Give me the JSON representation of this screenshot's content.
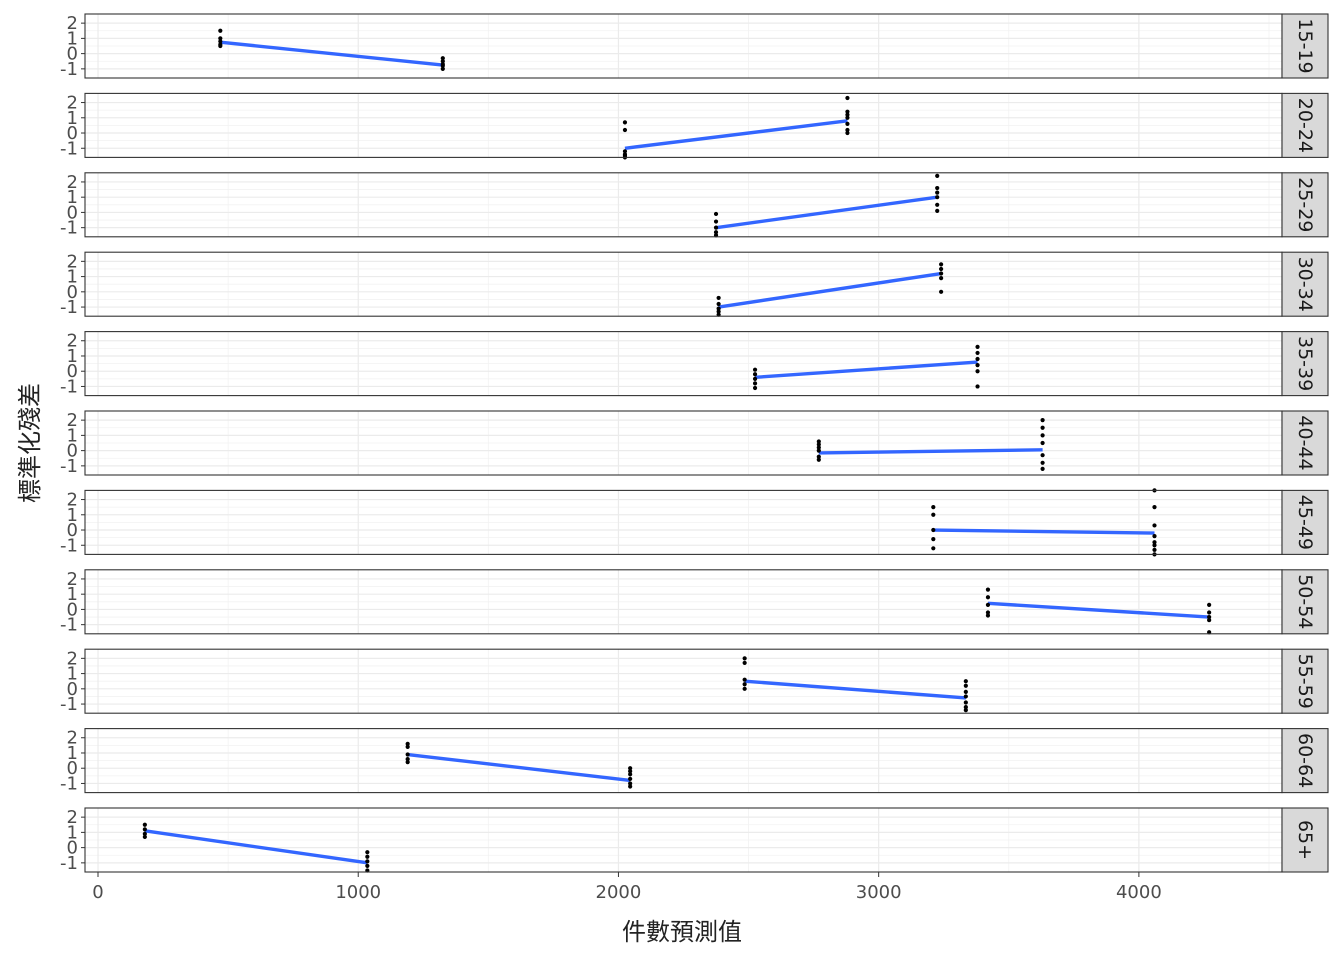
{
  "chart_data": {
    "type": "scatter",
    "xlabel": "件數預測值",
    "ylabel": "標準化殘差",
    "x_range": [
      -50,
      4550
    ],
    "x_ticks": [
      0,
      1000,
      2000,
      3000,
      4000
    ],
    "y_range": [
      -1.6,
      2.6
    ],
    "y_ticks": [
      -1,
      0,
      1,
      2
    ],
    "grid": true,
    "line_color": "#3366FF",
    "point_color": "#000000",
    "facets": [
      {
        "label": "15-19",
        "points": [
          [
            470,
            1.5
          ],
          [
            470,
            1.0
          ],
          [
            470,
            0.8
          ],
          [
            470,
            0.6
          ],
          [
            470,
            0.5
          ],
          [
            1325,
            -0.3
          ],
          [
            1325,
            -0.5
          ],
          [
            1325,
            -0.7
          ],
          [
            1325,
            -0.8
          ],
          [
            1325,
            -1.0
          ]
        ],
        "line": [
          [
            470,
            0.75
          ],
          [
            1325,
            -0.75
          ]
        ]
      },
      {
        "label": "20-24",
        "points": [
          [
            2025,
            0.7
          ],
          [
            2025,
            0.2
          ],
          [
            2025,
            -1.2
          ],
          [
            2025,
            -1.4
          ],
          [
            2025,
            -1.5
          ],
          [
            2025,
            -1.6
          ],
          [
            2880,
            2.3
          ],
          [
            2880,
            1.4
          ],
          [
            2880,
            1.2
          ],
          [
            2880,
            1.0
          ],
          [
            2880,
            0.6
          ],
          [
            2880,
            0.2
          ],
          [
            2880,
            0.0
          ]
        ],
        "line": [
          [
            2025,
            -1.0
          ],
          [
            2880,
            0.8
          ]
        ]
      },
      {
        "label": "25-29",
        "points": [
          [
            2375,
            -0.1
          ],
          [
            2375,
            -0.6
          ],
          [
            2375,
            -1.0
          ],
          [
            2375,
            -1.3
          ],
          [
            2375,
            -1.5
          ],
          [
            3225,
            2.4
          ],
          [
            3225,
            1.6
          ],
          [
            3225,
            1.3
          ],
          [
            3225,
            1.0
          ],
          [
            3225,
            0.5
          ],
          [
            3225,
            0.1
          ]
        ],
        "line": [
          [
            2375,
            -1.0
          ],
          [
            3225,
            1.0
          ]
        ]
      },
      {
        "label": "30-34",
        "points": [
          [
            2385,
            -0.4
          ],
          [
            2385,
            -0.8
          ],
          [
            2385,
            -1.1
          ],
          [
            2385,
            -1.3
          ],
          [
            2385,
            -1.5
          ],
          [
            3240,
            1.8
          ],
          [
            3240,
            1.5
          ],
          [
            3240,
            1.2
          ],
          [
            3240,
            0.9
          ],
          [
            3240,
            0.0
          ]
        ],
        "line": [
          [
            2385,
            -1.0
          ],
          [
            3240,
            1.2
          ]
        ]
      },
      {
        "label": "35-39",
        "points": [
          [
            2525,
            0.1
          ],
          [
            2525,
            -0.2
          ],
          [
            2525,
            -0.5
          ],
          [
            2525,
            -0.8
          ],
          [
            2525,
            -1.1
          ],
          [
            3380,
            1.6
          ],
          [
            3380,
            1.2
          ],
          [
            3380,
            0.8
          ],
          [
            3380,
            0.4
          ],
          [
            3380,
            0.0
          ],
          [
            3380,
            -1.0
          ]
        ],
        "line": [
          [
            2525,
            -0.4
          ],
          [
            3380,
            0.6
          ]
        ]
      },
      {
        "label": "40-44",
        "points": [
          [
            2770,
            0.6
          ],
          [
            2770,
            0.4
          ],
          [
            2770,
            0.2
          ],
          [
            2770,
            0.0
          ],
          [
            2770,
            -0.4
          ],
          [
            2770,
            -0.6
          ],
          [
            3630,
            2.0
          ],
          [
            3630,
            1.5
          ],
          [
            3630,
            1.0
          ],
          [
            3630,
            0.5
          ],
          [
            3630,
            -0.3
          ],
          [
            3630,
            -0.8
          ],
          [
            3630,
            -1.2
          ]
        ],
        "line": [
          [
            2770,
            -0.15
          ],
          [
            3630,
            0.05
          ]
        ]
      },
      {
        "label": "45-49",
        "points": [
          [
            3210,
            1.5
          ],
          [
            3210,
            1.0
          ],
          [
            3210,
            0.0
          ],
          [
            3210,
            -0.6
          ],
          [
            3210,
            -1.2
          ],
          [
            4060,
            2.6
          ],
          [
            4060,
            1.5
          ],
          [
            4060,
            0.3
          ],
          [
            4060,
            -0.4
          ],
          [
            4060,
            -0.8
          ],
          [
            4060,
            -1.0
          ],
          [
            4060,
            -1.3
          ],
          [
            4060,
            -1.6
          ]
        ],
        "line": [
          [
            3210,
            0.0
          ],
          [
            4060,
            -0.2
          ]
        ]
      },
      {
        "label": "50-54",
        "points": [
          [
            3420,
            1.3
          ],
          [
            3420,
            0.8
          ],
          [
            3420,
            0.3
          ],
          [
            3420,
            -0.2
          ],
          [
            3420,
            -0.4
          ],
          [
            4270,
            0.3
          ],
          [
            4270,
            -0.2
          ],
          [
            4270,
            -0.5
          ],
          [
            4270,
            -0.7
          ],
          [
            4270,
            -1.5
          ]
        ],
        "line": [
          [
            3420,
            0.4
          ],
          [
            4270,
            -0.5
          ]
        ]
      },
      {
        "label": "55-59",
        "points": [
          [
            2485,
            2.0
          ],
          [
            2485,
            1.7
          ],
          [
            2485,
            0.6
          ],
          [
            2485,
            0.3
          ],
          [
            2485,
            0.0
          ],
          [
            3335,
            0.5
          ],
          [
            3335,
            0.2
          ],
          [
            3335,
            -0.2
          ],
          [
            3335,
            -0.5
          ],
          [
            3335,
            -0.9
          ],
          [
            3335,
            -1.2
          ],
          [
            3335,
            -1.4
          ]
        ],
        "line": [
          [
            2485,
            0.5
          ],
          [
            3335,
            -0.6
          ]
        ]
      },
      {
        "label": "60-64",
        "points": [
          [
            1190,
            1.6
          ],
          [
            1190,
            1.4
          ],
          [
            1190,
            0.9
          ],
          [
            1190,
            0.6
          ],
          [
            1190,
            0.4
          ],
          [
            2045,
            0.0
          ],
          [
            2045,
            -0.2
          ],
          [
            2045,
            -0.4
          ],
          [
            2045,
            -0.7
          ],
          [
            2045,
            -1.0
          ],
          [
            2045,
            -1.2
          ]
        ],
        "line": [
          [
            1190,
            0.9
          ],
          [
            2045,
            -0.8
          ]
        ]
      },
      {
        "label": "65+",
        "points": [
          [
            180,
            1.5
          ],
          [
            180,
            1.2
          ],
          [
            180,
            0.9
          ],
          [
            180,
            0.7
          ],
          [
            1035,
            -0.3
          ],
          [
            1035,
            -0.6
          ],
          [
            1035,
            -0.9
          ],
          [
            1035,
            -1.2
          ],
          [
            1035,
            -1.5
          ]
        ],
        "line": [
          [
            180,
            1.1
          ],
          [
            1035,
            -1.0
          ]
        ]
      }
    ]
  }
}
